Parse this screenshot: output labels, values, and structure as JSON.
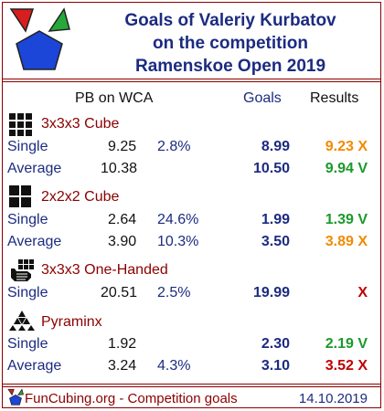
{
  "title": {
    "line1": "Goals of Valeriy Kurbatov",
    "line2": "on the competition",
    "line3": "Ramenskoe Open 2019"
  },
  "header": {
    "pb": "PB on WCA",
    "goals": "Goals",
    "results": "Results"
  },
  "colors": {
    "green": "#1a9a2a",
    "orange": "#f28a00",
    "red": "#c00000",
    "navy": "#1c2b80",
    "maroon": "#8b0000"
  },
  "events": [
    {
      "icon": "cube-3x3-icon",
      "name": "3x3x3 Cube",
      "rows": [
        {
          "label": "Single",
          "pb": "9.25",
          "pct": "2.8%",
          "goal": "8.99",
          "result": "9.23 X",
          "status": "orange"
        },
        {
          "label": "Average",
          "pb": "10.38",
          "pct": "",
          "goal": "10.50",
          "result": "9.94 V",
          "status": "green"
        }
      ]
    },
    {
      "icon": "cube-2x2-icon",
      "name": "2x2x2 Cube",
      "rows": [
        {
          "label": "Single",
          "pb": "2.64",
          "pct": "24.6%",
          "goal": "1.99",
          "result": "1.39 V",
          "status": "green"
        },
        {
          "label": "Average",
          "pb": "3.90",
          "pct": "10.3%",
          "goal": "3.50",
          "result": "3.89 X",
          "status": "orange"
        }
      ]
    },
    {
      "icon": "one-handed-icon",
      "name": "3x3x3 One-Handed",
      "rows": [
        {
          "label": "Single",
          "pb": "20.51",
          "pct": "2.5%",
          "goal": "19.99",
          "result": "X",
          "status": "red"
        }
      ]
    },
    {
      "icon": "pyraminx-icon",
      "name": "Pyraminx",
      "rows": [
        {
          "label": "Single",
          "pb": "1.92",
          "pct": "",
          "goal": "2.30",
          "result": "2.19 V",
          "status": "green"
        },
        {
          "label": "Average",
          "pb": "3.24",
          "pct": "4.3%",
          "goal": "3.10",
          "result": "3.52 X",
          "status": "red"
        }
      ]
    }
  ],
  "footer": {
    "site": "FunCubing.org - Competition goals",
    "date": "14.10.2019"
  }
}
